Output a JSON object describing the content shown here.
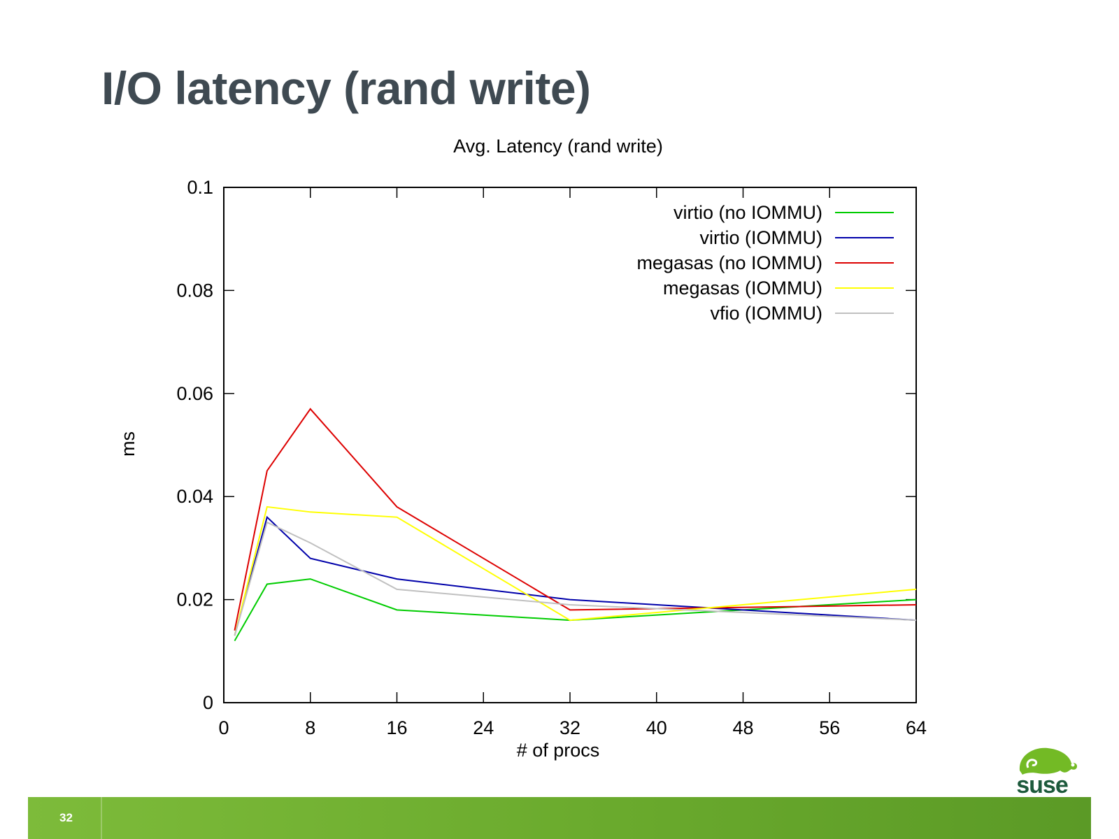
{
  "slide": {
    "title": "I/O latency (rand write)",
    "page_number": "32",
    "logo_text": "suse"
  },
  "colors": {
    "title": "#3f4a52",
    "footer_green": "#6aaa2d",
    "logo_green": "#73ba25",
    "logo_text": "#1d5a3c"
  },
  "chart_data": {
    "type": "line",
    "title": "Avg. Latency (rand write)",
    "xlabel": "# of procs",
    "ylabel": "ms",
    "xlim": [
      0,
      64
    ],
    "ylim": [
      0,
      0.1
    ],
    "xticks": [
      "0",
      "8",
      "16",
      "24",
      "32",
      "40",
      "48",
      "56",
      "64"
    ],
    "yticks": [
      "0",
      "0.02",
      "0.04",
      "0.06",
      "0.08",
      "0.1"
    ],
    "x": [
      1,
      4,
      8,
      16,
      32,
      64
    ],
    "legend_position": "top-right",
    "grid": false,
    "series": [
      {
        "name": "virtio (no IOMMU)",
        "color": "#00cc00",
        "values": [
          0.012,
          0.023,
          0.024,
          0.018,
          0.016,
          0.02
        ]
      },
      {
        "name": "virtio (IOMMU)",
        "color": "#0000aa",
        "values": [
          0.013,
          0.036,
          0.028,
          0.024,
          0.02,
          0.016
        ]
      },
      {
        "name": "megasas (no IOMMU)",
        "color": "#dd0000",
        "values": [
          0.014,
          0.045,
          0.057,
          0.038,
          0.018,
          0.019
        ]
      },
      {
        "name": "megasas (IOMMU)",
        "color": "#ffff00",
        "values": [
          0.013,
          0.038,
          0.037,
          0.036,
          0.016,
          0.022
        ]
      },
      {
        "name": "vfio (IOMMU)",
        "color": "#c0c0c0",
        "values": [
          0.013,
          0.035,
          0.031,
          0.022,
          0.019,
          0.016
        ]
      }
    ]
  }
}
